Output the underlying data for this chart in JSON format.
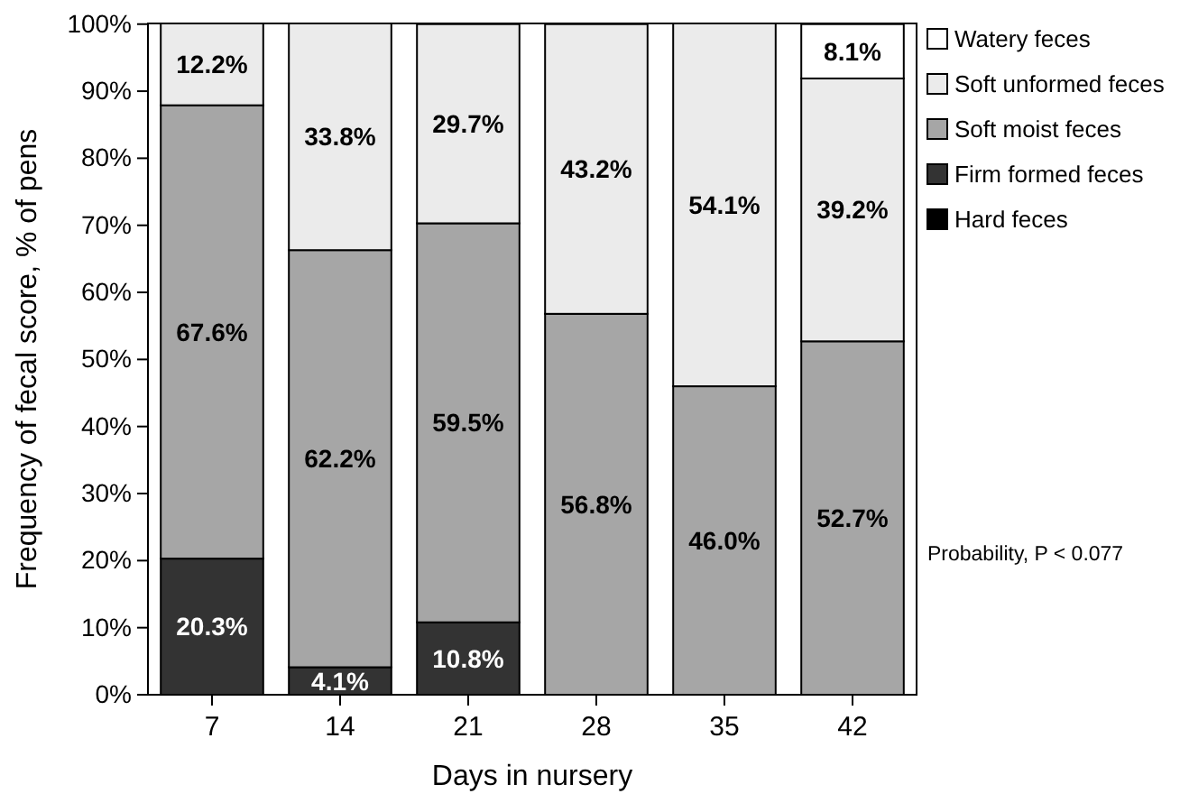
{
  "chart_data": {
    "type": "bar",
    "stacked": true,
    "xlabel": "Days in nursery",
    "ylabel": "Frequency of fecal score, % of pens",
    "categories": [
      "7",
      "14",
      "21",
      "28",
      "35",
      "42"
    ],
    "series": [
      {
        "name": "Hard feces",
        "color": "#000000",
        "values": [
          null,
          null,
          null,
          null,
          null,
          null
        ],
        "value_labels": [
          null,
          null,
          null,
          null,
          null,
          null
        ]
      },
      {
        "name": "Firm formed feces",
        "color": "#333333",
        "values": [
          20.3,
          4.1,
          10.8,
          null,
          null,
          null
        ],
        "value_labels": [
          "20.3%",
          "4.1%",
          "10.8%",
          null,
          null,
          null
        ]
      },
      {
        "name": "Soft moist feces",
        "color": "#a6a6a6",
        "values": [
          67.6,
          62.2,
          59.5,
          56.8,
          46.0,
          52.7
        ],
        "value_labels": [
          "67.6%",
          "62.2%",
          "59.5%",
          "56.8%",
          "46.0%",
          "52.7%"
        ]
      },
      {
        "name": "Soft unformed feces",
        "color": "#ebebeb",
        "values": [
          12.2,
          33.8,
          29.7,
          43.2,
          54.1,
          39.2
        ],
        "value_labels": [
          "12.2%",
          "33.8%",
          "29.7%",
          "43.2%",
          "54.1%",
          "39.2%"
        ]
      },
      {
        "name": "Watery feces",
        "color": "#ffffff",
        "values": [
          null,
          null,
          null,
          null,
          null,
          8.1
        ],
        "value_labels": [
          null,
          null,
          null,
          null,
          null,
          "8.1%"
        ]
      }
    ],
    "ylim": [
      0,
      100.1
    ],
    "yticks": [
      {
        "value": 0,
        "label": "0%"
      },
      {
        "value": 10,
        "label": "10%"
      },
      {
        "value": 20,
        "label": "20%"
      },
      {
        "value": 30,
        "label": "30%"
      },
      {
        "value": 40,
        "label": "40%"
      },
      {
        "value": 50,
        "label": "50%"
      },
      {
        "value": 60,
        "label": "60%"
      },
      {
        "value": 70,
        "label": "70%"
      },
      {
        "value": 80,
        "label": "80%"
      },
      {
        "value": 90,
        "label": "90%"
      },
      {
        "value": 100,
        "label": "100%"
      }
    ],
    "legend": "top right",
    "grid": false,
    "annotations": [
      "Probability, P < 0.077"
    ]
  }
}
